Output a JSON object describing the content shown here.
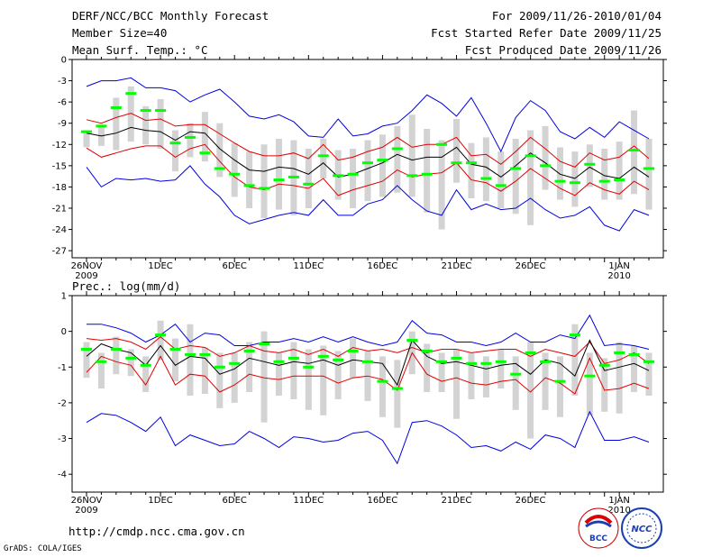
{
  "header": {
    "title": "DERF/NCC/BCC Monthly Forecast",
    "member_size": "Member Size=40",
    "variable": "Mean Surf. Temp.: °C",
    "period": "For 2009/11/26-2010/01/04",
    "started": "Fcst Started Refer Date 2009/11/25",
    "produced": "Fcst Produced Date 2009/11/26"
  },
  "footer": {
    "url": "http://cmdp.ncc.cma.gov.cn",
    "grads": "GrADS: COLA/IGES",
    "logo_left_text": "BCC",
    "logo_right_text": "NCC"
  },
  "x_labels": [
    {
      "day": 0,
      "label": "26NOV",
      "sub": "2009"
    },
    {
      "day": 5,
      "label": "1DEC",
      "sub": ""
    },
    {
      "day": 10,
      "label": "6DEC",
      "sub": ""
    },
    {
      "day": 15,
      "label": "11DEC",
      "sub": ""
    },
    {
      "day": 20,
      "label": "16DEC",
      "sub": ""
    },
    {
      "day": 25,
      "label": "21DEC",
      "sub": ""
    },
    {
      "day": 30,
      "label": "26DEC",
      "sub": ""
    },
    {
      "day": 36,
      "label": "1JAN",
      "sub": "2010"
    }
  ],
  "colors": {
    "box": "#d3d3d3",
    "median": "#00ff00",
    "mean": "#000000",
    "spread": "#e00000",
    "extreme": "#0000e0",
    "axis": "#000000"
  },
  "chart_data": [
    {
      "type": "boxplot",
      "title": "Mean Surf. Temp.: °C",
      "ylim": [
        -28,
        0
      ],
      "yticks": [
        0,
        -3,
        -6,
        -9,
        -12,
        -15,
        -18,
        -21,
        -24,
        -27
      ],
      "days": 39,
      "series": [
        {
          "name": "max",
          "values": [
            -3.8,
            -3,
            -3,
            -2.6,
            -4,
            -4,
            -4.4,
            -6,
            -5,
            -4.2,
            -6,
            -8,
            -8.4,
            -7.8,
            -8.8,
            -10.8,
            -11,
            -8.4,
            -10.8,
            -10.5,
            -9.4,
            -9,
            -7.2,
            -5,
            -6.2,
            -8,
            -5.4,
            -9,
            -13,
            -8.2,
            -5.8,
            -7.2,
            -10.2,
            -11.2,
            -9.6,
            -11,
            -8.8,
            -10,
            -11.2
          ]
        },
        {
          "name": "upper",
          "values": [
            -8.5,
            -9,
            -8.2,
            -7.6,
            -8.6,
            -8.4,
            -9.4,
            -9.2,
            -9.2,
            -10.5,
            -11.8,
            -13,
            -13.6,
            -13.6,
            -13.2,
            -14,
            -12,
            -14.2,
            -13.8,
            -13,
            -12.4,
            -11,
            -12.4,
            -12,
            -12,
            -11,
            -13.6,
            -13.4,
            -14.8,
            -13,
            -11,
            -12.6,
            -14.4,
            -15.2,
            -13.2,
            -14.2,
            -13.8,
            -12.2,
            -14
          ]
        },
        {
          "name": "mean",
          "values": [
            -10.4,
            -10.8,
            -10.4,
            -9.6,
            -10,
            -10.2,
            -11.4,
            -10.2,
            -10.4,
            -12.6,
            -14.2,
            -15.6,
            -15.8,
            -15.2,
            -15.4,
            -16.2,
            -14.6,
            -16.6,
            -16.2,
            -15.4,
            -14.6,
            -13.4,
            -14.2,
            -13.8,
            -13.8,
            -12.4,
            -14.8,
            -15.2,
            -16.6,
            -15,
            -13.2,
            -14.6,
            -16.2,
            -16.8,
            -15.2,
            -16.4,
            -16.8,
            -15.2,
            -16.6
          ]
        },
        {
          "name": "lower",
          "values": [
            -12.5,
            -13.8,
            -13.2,
            -12.6,
            -12.2,
            -12.2,
            -13.8,
            -12.6,
            -12,
            -14.4,
            -16.6,
            -18,
            -18.4,
            -17.6,
            -17.8,
            -18.2,
            -16.8,
            -19.2,
            -18.4,
            -17.8,
            -17.2,
            -15.6,
            -16.6,
            -16.2,
            -16,
            -14.6,
            -17,
            -17.4,
            -18.6,
            -17.2,
            -15.4,
            -16.8,
            -18.2,
            -19.2,
            -17.4,
            -18.4,
            -19,
            -17.2,
            -18.4
          ]
        },
        {
          "name": "min",
          "values": [
            -15.2,
            -18,
            -16.8,
            -17,
            -16.8,
            -17.2,
            -17,
            -15,
            -17.6,
            -19.4,
            -22,
            -23.2,
            -22.6,
            -22,
            -21.6,
            -22,
            -19.8,
            -22,
            -22,
            -20.4,
            -19.8,
            -17.8,
            -19.8,
            -21.4,
            -22,
            -18.4,
            -21.2,
            -20.4,
            -21.2,
            -21,
            -19.6,
            -21.2,
            -22.4,
            -22,
            -20.8,
            -23.4,
            -24.2,
            -21.2,
            -22
          ]
        },
        {
          "name": "median",
          "values": [
            -10.2,
            -9.4,
            -6.8,
            -4.8,
            -7.2,
            -7.2,
            -11.8,
            -11,
            -13.2,
            -15.4,
            -16.2,
            -17.8,
            -18.2,
            -17,
            -16.6,
            -17.6,
            -13.6,
            -16.4,
            -16.2,
            -14.6,
            -14.2,
            -12.6,
            -16.4,
            -16.2,
            -12,
            -14.6,
            -14.6,
            -16.8,
            -17.8,
            -15.4,
            -13.6,
            -15,
            -17.2,
            -17.4,
            -14.8,
            -17.2,
            -17,
            -12.8,
            -15.4
          ]
        },
        {
          "name": "box_top",
          "values": [
            -10,
            -9.2,
            -5.4,
            -3.8,
            -6.6,
            -5.6,
            -10,
            -9,
            -7.4,
            -9,
            -11.8,
            -13,
            -12,
            -11.2,
            -11.4,
            -12.6,
            -11.2,
            -12.8,
            -12.6,
            -11.4,
            -10.6,
            -9.4,
            -7.8,
            -9.8,
            -11.4,
            -8.4,
            -11.8,
            -11,
            -13,
            -11.2,
            -10,
            -9.4,
            -12.4,
            -13,
            -12,
            -12.6,
            -11.6,
            -7.2,
            -11.2
          ]
        },
        {
          "name": "box_bottom",
          "values": [
            -12.4,
            -12.2,
            -12.8,
            -11.6,
            -12,
            -12.6,
            -15.8,
            -13.8,
            -14.4,
            -16.6,
            -19.4,
            -21,
            -22.4,
            -21.2,
            -22,
            -21,
            -16.8,
            -19.8,
            -21,
            -20,
            -19.4,
            -18.8,
            -19.4,
            -21.6,
            -24,
            -17.4,
            -19.6,
            -20,
            -21,
            -21.8,
            -23.4,
            -18.4,
            -19.8,
            -20.8,
            -18,
            -19.8,
            -19.8,
            -19,
            -21.2
          ]
        }
      ]
    },
    {
      "type": "boxplot",
      "title": "Prec.: log(mm/d)",
      "ylim": [
        -4.5,
        1
      ],
      "yticks": [
        1,
        0,
        -1,
        -2,
        -3,
        -4
      ],
      "days": 39,
      "series": [
        {
          "name": "max",
          "values": [
            0.2,
            0.2,
            0.1,
            -0.05,
            -0.3,
            -0.1,
            0.2,
            -0.3,
            -0.05,
            -0.1,
            -0.4,
            -0.4,
            -0.3,
            -0.3,
            -0.2,
            -0.3,
            -0.15,
            -0.3,
            -0.15,
            -0.3,
            -0.4,
            -0.3,
            0.3,
            -0.05,
            -0.1,
            -0.3,
            -0.3,
            -0.4,
            -0.3,
            -0.05,
            -0.3,
            -0.3,
            -0.1,
            -0.2,
            0.45,
            -0.4,
            -0.35,
            -0.4,
            -0.5
          ]
        },
        {
          "name": "upper",
          "values": [
            -0.2,
            -0.25,
            -0.2,
            -0.3,
            -0.5,
            -0.15,
            -0.5,
            -0.4,
            -0.45,
            -0.7,
            -0.6,
            -0.4,
            -0.55,
            -0.6,
            -0.5,
            -0.65,
            -0.5,
            -0.7,
            -0.45,
            -0.55,
            -0.5,
            -0.6,
            -0.45,
            -0.6,
            -0.5,
            -0.5,
            -0.6,
            -0.55,
            -0.5,
            -0.5,
            -0.7,
            -0.5,
            -0.6,
            -0.7,
            -0.3,
            -0.9,
            -0.8,
            -0.6,
            -0.9
          ]
        },
        {
          "name": "mean",
          "values": [
            -0.7,
            -0.35,
            -0.5,
            -0.6,
            -0.95,
            -0.4,
            -0.95,
            -0.7,
            -0.75,
            -1.2,
            -1.05,
            -0.75,
            -0.85,
            -0.95,
            -0.85,
            -0.9,
            -0.8,
            -0.95,
            -0.8,
            -0.85,
            -0.9,
            -1.5,
            -0.25,
            -0.7,
            -0.9,
            -0.85,
            -0.95,
            -1.05,
            -0.95,
            -0.9,
            -1.2,
            -0.8,
            -0.9,
            -1.25,
            -0.25,
            -1.1,
            -1,
            -0.9,
            -1.1
          ]
        },
        {
          "name": "lower",
          "values": [
            -1.15,
            -0.7,
            -0.85,
            -0.95,
            -1.5,
            -0.7,
            -1.5,
            -1.2,
            -1.25,
            -1.7,
            -1.5,
            -1.2,
            -1.3,
            -1.35,
            -1.25,
            -1.25,
            -1.25,
            -1.45,
            -1.3,
            -1.25,
            -1.35,
            -1.65,
            -0.6,
            -1.2,
            -1.4,
            -1.3,
            -1.45,
            -1.5,
            -1.4,
            -1.35,
            -1.7,
            -1.3,
            -1.45,
            -1.75,
            -0.75,
            -1.65,
            -1.6,
            -1.45,
            -1.6
          ]
        },
        {
          "name": "min",
          "values": [
            -2.55,
            -2.3,
            -2.35,
            -2.55,
            -2.8,
            -2.4,
            -3.2,
            -2.9,
            -3.05,
            -3.2,
            -3.15,
            -2.8,
            -3,
            -3.25,
            -2.95,
            -3,
            -3.1,
            -3.05,
            -2.85,
            -2.8,
            -3.05,
            -3.7,
            -2.55,
            -2.5,
            -2.65,
            -2.9,
            -3.25,
            -3.2,
            -3.35,
            -3.1,
            -3.3,
            -2.9,
            -3,
            -3.25,
            -2.25,
            -3.05,
            -3.05,
            -2.95,
            -3.1
          ]
        },
        {
          "name": "median",
          "values": [
            -0.5,
            -0.85,
            -0.5,
            -0.75,
            -0.95,
            -0.1,
            -0.5,
            -0.65,
            -0.65,
            -1,
            -0.9,
            -0.55,
            -0.35,
            -0.85,
            -0.75,
            -1,
            -0.7,
            -0.8,
            -0.55,
            -0.85,
            -1.4,
            -1.6,
            -0.25,
            -0.55,
            -0.85,
            -0.75,
            -0.9,
            -0.9,
            -0.85,
            -1.2,
            -0.6,
            -0.85,
            -1.4,
            -0.1,
            -1.25,
            -0.95,
            -0.6,
            -0.65,
            -0.85
          ]
        },
        {
          "name": "box_top",
          "values": [
            -0.3,
            -0.6,
            -0.15,
            -0.5,
            -0.7,
            0.3,
            -0.2,
            0.2,
            -0.45,
            -0.6,
            -0.6,
            -0.3,
            0,
            -0.6,
            -0.3,
            -0.5,
            -0.4,
            -0.55,
            -0.2,
            -0.55,
            -0.7,
            -0.8,
            0,
            -0.35,
            -0.6,
            -0.5,
            -0.6,
            -0.7,
            -0.5,
            -0.7,
            -0.3,
            -0.6,
            -0.7,
            0.2,
            -0.6,
            -0.75,
            -0.3,
            -0.4,
            -0.6
          ]
        },
        {
          "name": "box_bottom",
          "values": [
            -1.3,
            -1.6,
            -1.2,
            -1.25,
            -1.7,
            -0.8,
            -1.4,
            -1.8,
            -1.75,
            -2.15,
            -2,
            -1.7,
            -2.55,
            -1.8,
            -1.9,
            -2.2,
            -2.35,
            -1.9,
            -1.3,
            -1.95,
            -2.4,
            -2.7,
            -1.2,
            -1.7,
            -1.7,
            -2.45,
            -1.9,
            -1.85,
            -1.6,
            -2.2,
            -3,
            -2.2,
            -2.4,
            -1.8,
            -2.35,
            -2.25,
            -2.3,
            -1.7,
            -1.8
          ]
        }
      ]
    }
  ]
}
